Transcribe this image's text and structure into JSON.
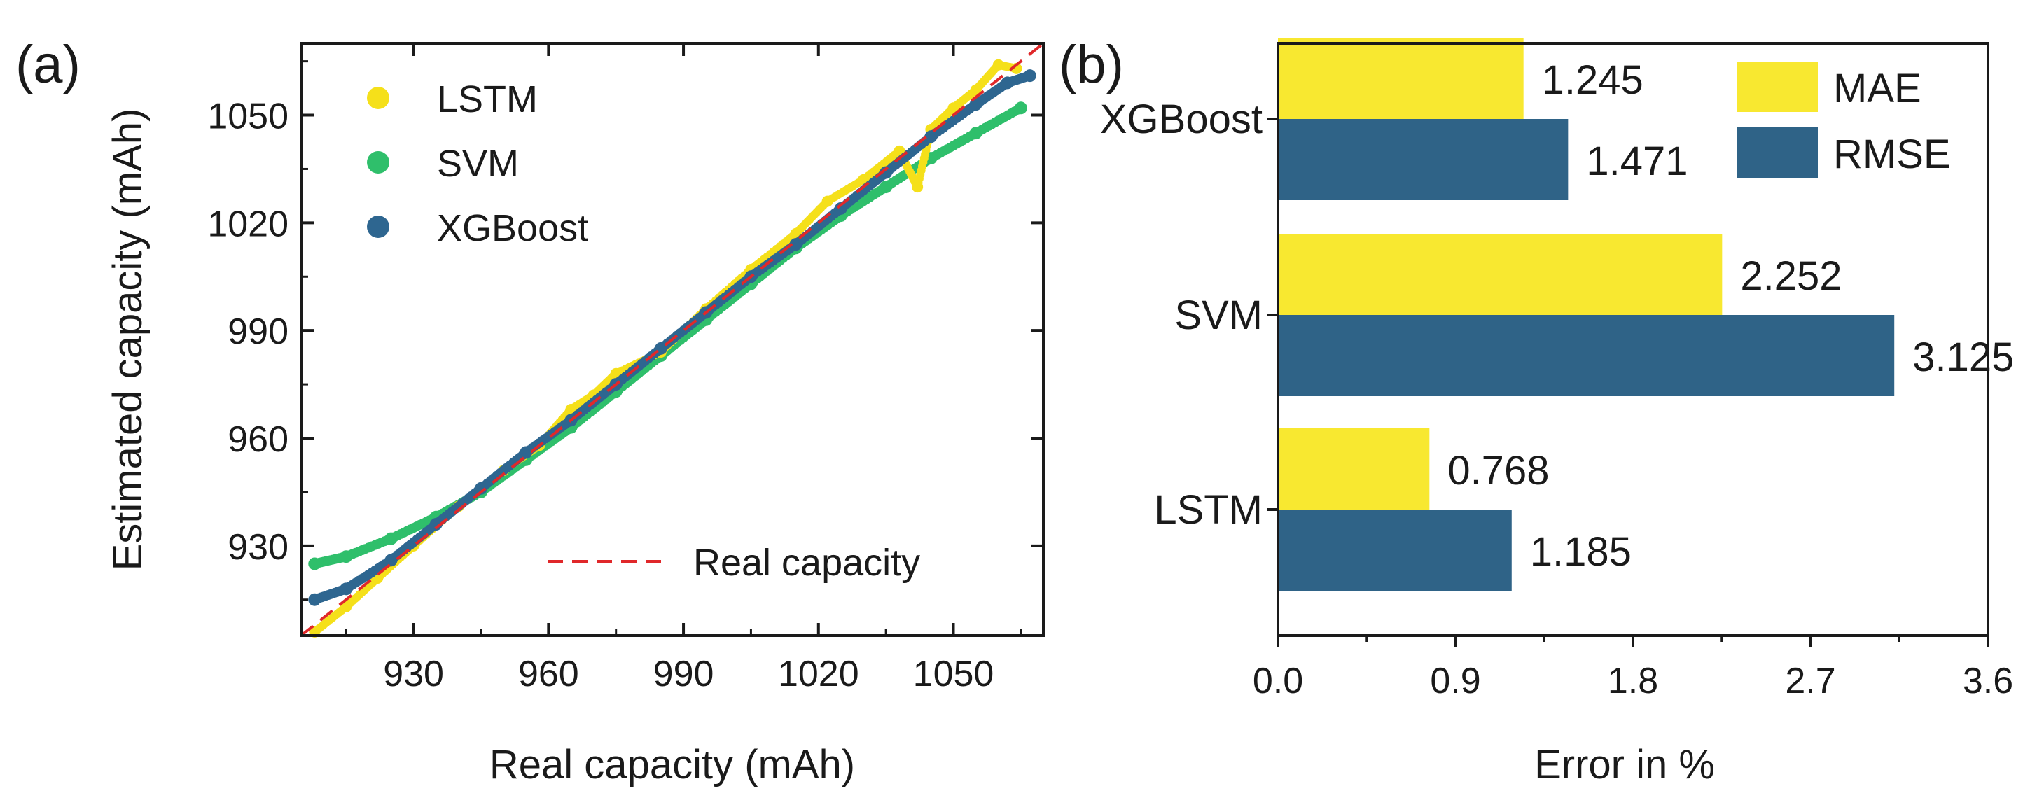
{
  "colors": {
    "lstm": "#f5e01a",
    "svm": "#2fbf6b",
    "xgboost": "#2e6690",
    "real": "#e0282a",
    "mae": "#f8e830",
    "rmse": "#2f6387",
    "axis": "#1a1a1a"
  },
  "panel_a": {
    "label": "(a)"
  },
  "panel_b": {
    "label": "(b)"
  },
  "chart_data": [
    {
      "type": "scatter",
      "panel": "(a)",
      "xlabel": "Real capacity (mAh)",
      "ylabel": "Estimated capacity (mAh)",
      "xlim": [
        905,
        1070
      ],
      "ylim": [
        905,
        1070
      ],
      "xticks": [
        930,
        960,
        990,
        1020,
        1050
      ],
      "yticks": [
        930,
        960,
        990,
        1020,
        1050
      ],
      "xtick_labels": [
        "930",
        "960",
        "990",
        "1020",
        "1050"
      ],
      "ytick_labels": [
        "930",
        "960",
        "990",
        "1020",
        "1050"
      ],
      "legend": {
        "position": "top-left",
        "entries": [
          "LSTM",
          "SVM",
          "XGBoost"
        ]
      },
      "reference_line": {
        "label": "Real capacity",
        "style": "dashed",
        "from": [
          905,
          905
        ],
        "to": [
          1070,
          1070
        ]
      },
      "series": [
        {
          "name": "LSTM",
          "x": [
            908,
            915,
            922,
            930,
            940,
            950,
            958,
            965,
            970,
            975,
            985,
            995,
            1005,
            1015,
            1022,
            1030,
            1038,
            1042,
            1045,
            1050,
            1055,
            1060,
            1064
          ],
          "y": [
            906,
            913,
            921,
            930,
            941,
            951,
            958,
            968,
            972,
            978,
            984,
            996,
            1007,
            1017,
            1026,
            1032,
            1040,
            1030,
            1046,
            1052,
            1057,
            1064,
            1063
          ]
        },
        {
          "name": "SVM",
          "x": [
            908,
            915,
            925,
            935,
            945,
            955,
            965,
            975,
            985,
            995,
            1005,
            1015,
            1025,
            1035,
            1045,
            1055,
            1065
          ],
          "y": [
            925,
            927,
            932,
            938,
            945,
            954,
            963,
            973,
            983,
            993,
            1003,
            1013,
            1022,
            1030,
            1038,
            1045,
            1052
          ]
        },
        {
          "name": "XGBoost",
          "x": [
            908,
            915,
            925,
            935,
            945,
            955,
            965,
            975,
            985,
            995,
            1005,
            1015,
            1025,
            1035,
            1045,
            1055,
            1062,
            1067
          ],
          "y": [
            915,
            918,
            926,
            936,
            946,
            956,
            965,
            975,
            985,
            995,
            1005,
            1014,
            1024,
            1034,
            1044,
            1053,
            1059,
            1061
          ]
        }
      ]
    },
    {
      "type": "bar",
      "orientation": "horizontal",
      "panel": "(b)",
      "xlabel": "Error in %",
      "ylabel": "",
      "xlim": [
        0,
        3.6
      ],
      "xticks": [
        0,
        0.9,
        1.8,
        2.7,
        3.6
      ],
      "xtick_labels": [
        "0.0",
        "0.9",
        "1.8",
        "2.7",
        "3.6"
      ],
      "categories": [
        "XGBoost",
        "SVM",
        "LSTM"
      ],
      "legend": {
        "position": "top-right",
        "entries": [
          "MAE",
          "RMSE"
        ]
      },
      "series": [
        {
          "name": "MAE",
          "values": [
            1.245,
            2.252,
            0.768
          ],
          "labels": [
            "1.245",
            "2.252",
            "0.768"
          ]
        },
        {
          "name": "RMSE",
          "values": [
            1.471,
            3.125,
            1.185
          ],
          "labels": [
            "1.471",
            "3.125",
            "1.185"
          ]
        }
      ]
    }
  ]
}
